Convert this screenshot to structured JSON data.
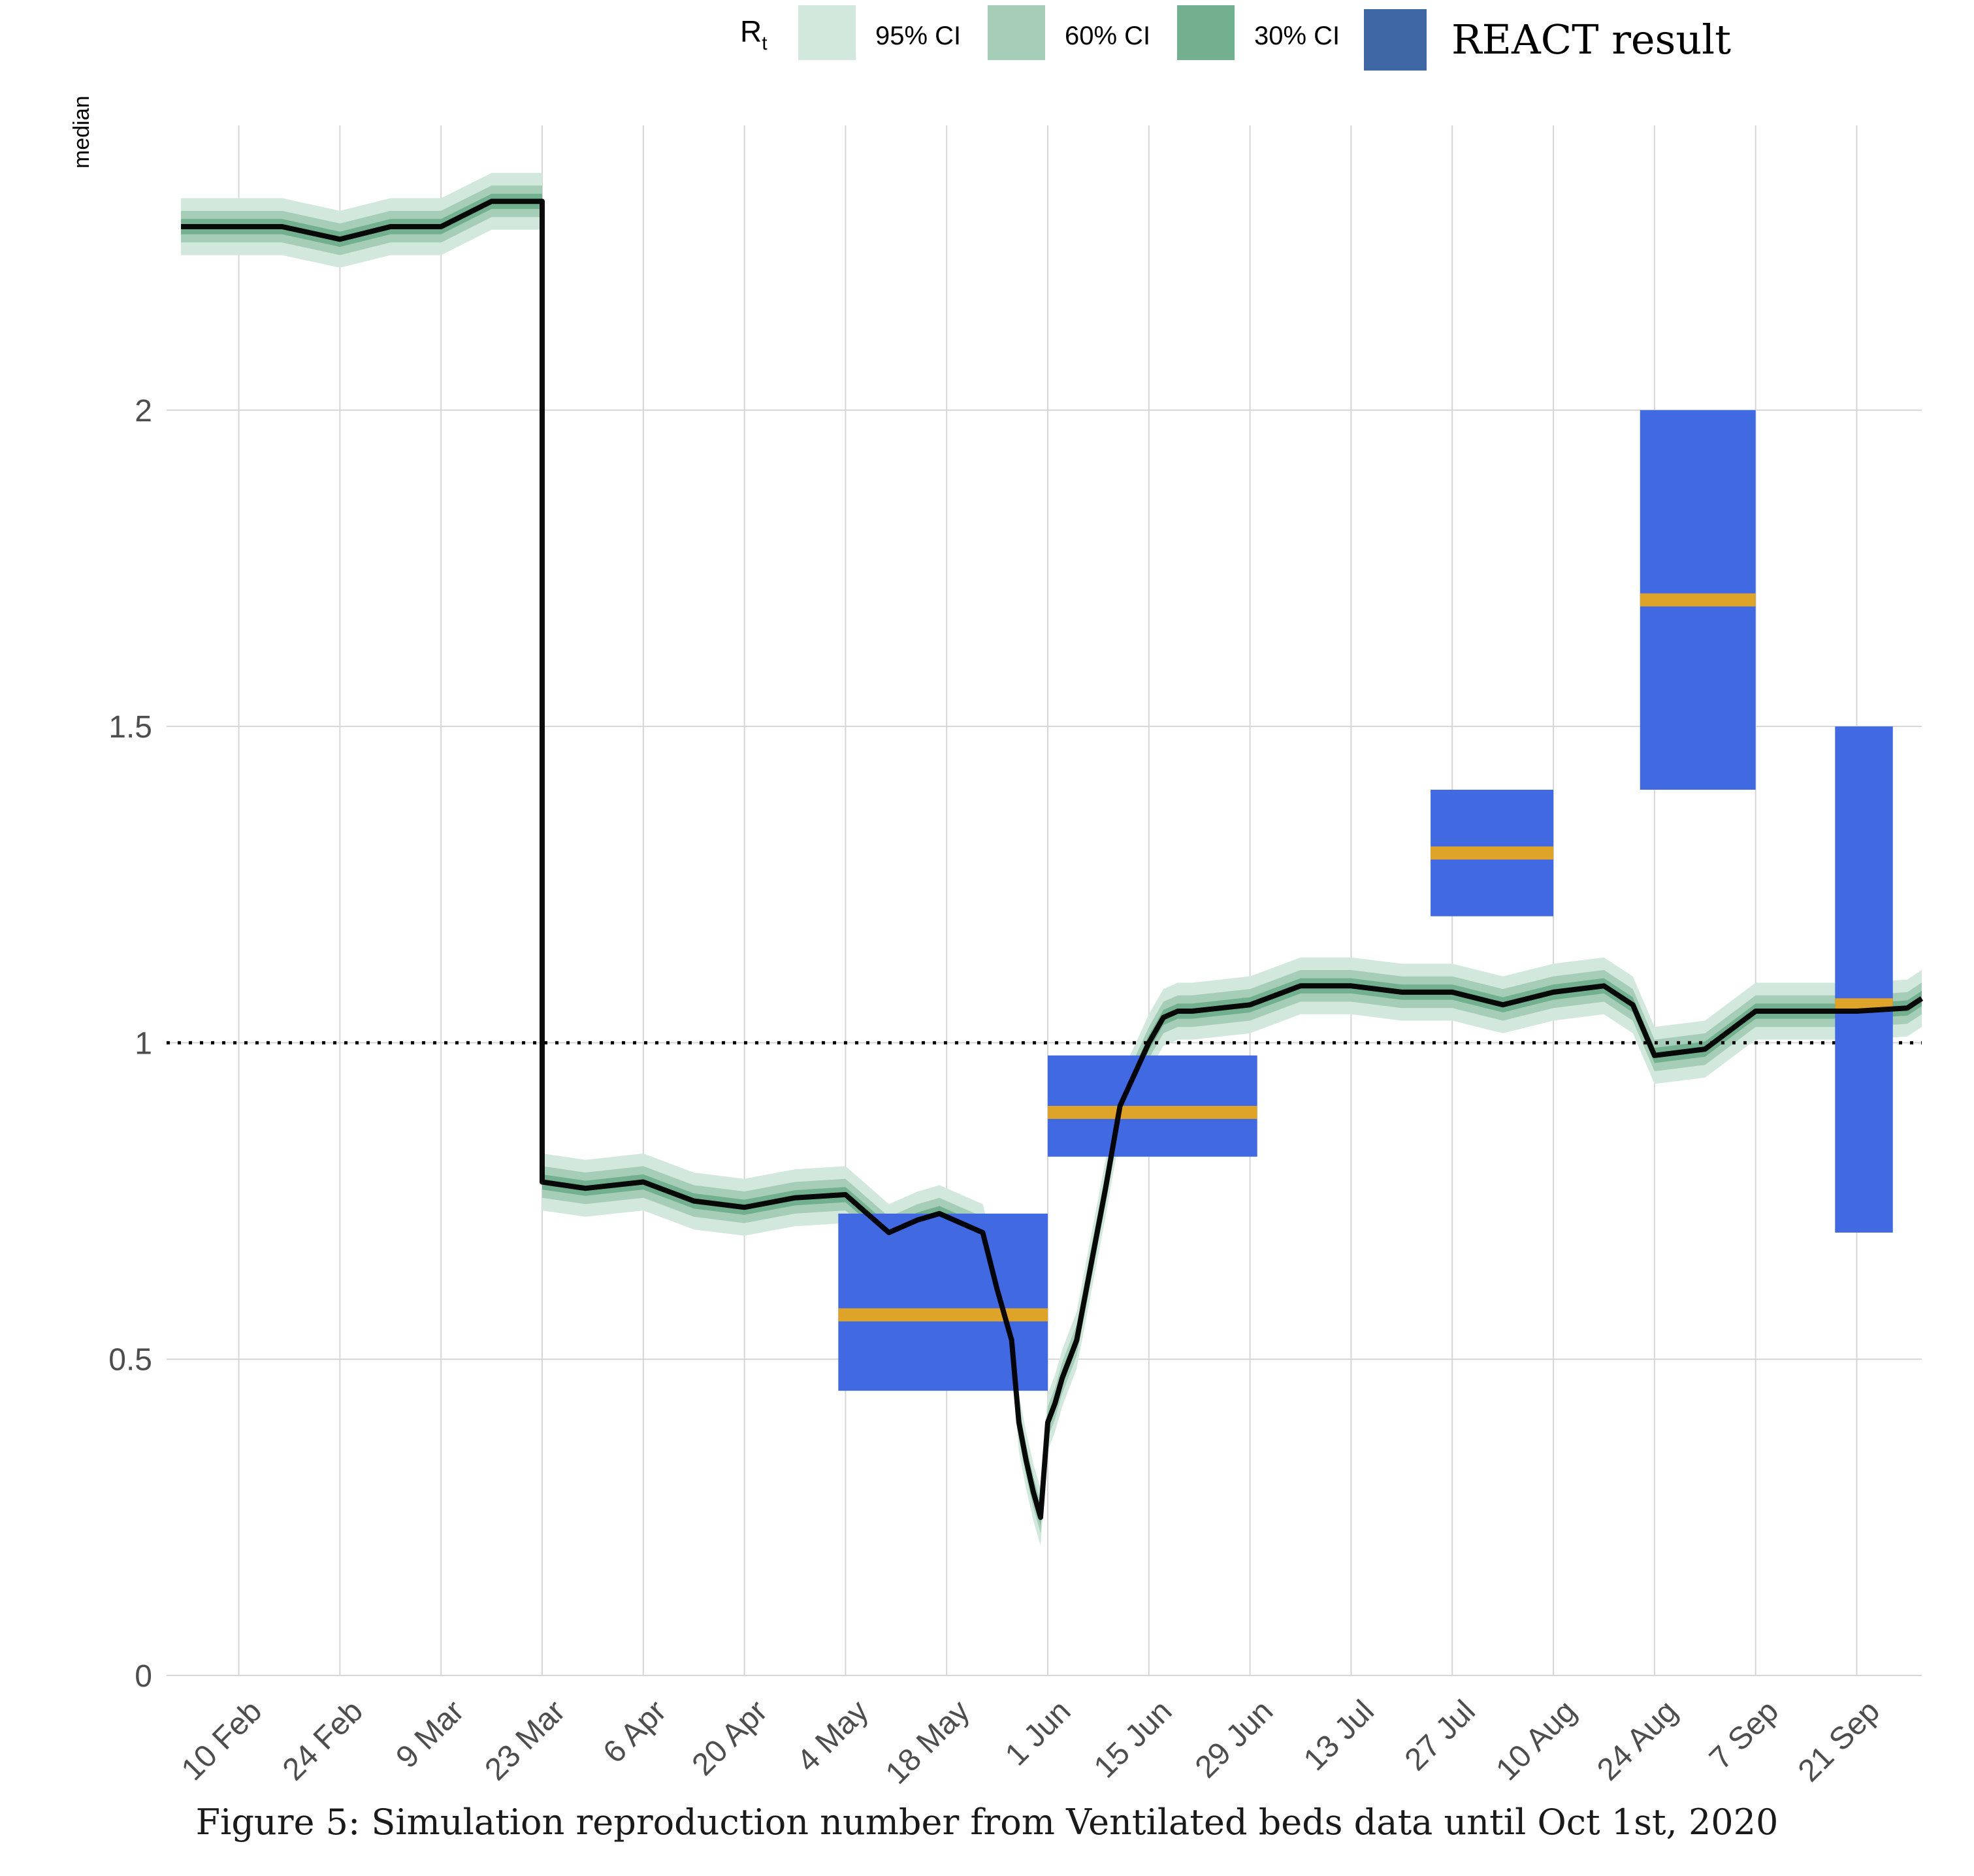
{
  "caption": "Figure 5: Simulation reproduction number from Ventilated beds data until Oct 1st, 2020",
  "legend": {
    "title_main": "R",
    "title_sub": "t",
    "items": [
      "95% CI",
      "60% CI",
      "30% CI",
      "REACT result"
    ]
  },
  "colors": {
    "ci95": "#d3e8dd",
    "ci60": "#a5cdb7",
    "ci30": "#72b08f",
    "median": "#000000",
    "react_box": "#4169e1",
    "react_legend": "#3f67a3",
    "react_center": "#dea42a",
    "grid": "#d6d6d6"
  },
  "chart_data": {
    "type": "line",
    "title": "",
    "xlabel": "",
    "ylabel": "median",
    "ylim": [
      0,
      2.45
    ],
    "yticks": [
      0,
      0.5,
      1,
      1.5,
      2
    ],
    "ytick_labels": [
      "0",
      "0.5",
      "1",
      "1.5",
      "2"
    ],
    "xlim": [
      "2020-01-31",
      "2020-09-30"
    ],
    "xtick_dates": [
      "2020-02-10",
      "2020-02-24",
      "2020-03-09",
      "2020-03-23",
      "2020-04-06",
      "2020-04-20",
      "2020-05-04",
      "2020-05-18",
      "2020-06-01",
      "2020-06-15",
      "2020-06-29",
      "2020-07-13",
      "2020-07-27",
      "2020-08-10",
      "2020-08-24",
      "2020-09-07",
      "2020-09-21"
    ],
    "xtick_labels": [
      "10 Feb",
      "24 Feb",
      "9 Mar",
      "23 Mar",
      "6 Apr",
      "20 Apr",
      "4 May",
      "18 May",
      "1 Jun",
      "15 Jun",
      "29 Jun",
      "13 Jul",
      "27 Jul",
      "10 Aug",
      "24 Aug",
      "7 Sep",
      "21 Sep"
    ],
    "reference_line": 1,
    "grid": true,
    "legend_position": "top",
    "median": {
      "x": [
        "2020-02-02",
        "2020-02-16",
        "2020-02-24",
        "2020-03-02",
        "2020-03-09",
        "2020-03-16",
        "2020-03-22",
        "2020-03-23",
        "2020-03-29",
        "2020-04-06",
        "2020-04-13",
        "2020-04-20",
        "2020-04-27",
        "2020-05-04",
        "2020-05-10",
        "2020-05-14",
        "2020-05-17",
        "2020-05-21",
        "2020-05-23",
        "2020-05-25",
        "2020-05-27",
        "2020-05-28",
        "2020-05-29",
        "2020-05-30",
        "2020-05-31",
        "2020-06-01",
        "2020-06-02",
        "2020-06-03",
        "2020-06-05",
        "2020-06-07",
        "2020-06-09",
        "2020-06-11",
        "2020-06-13",
        "2020-06-15",
        "2020-06-17",
        "2020-06-19",
        "2020-06-21",
        "2020-06-29",
        "2020-07-06",
        "2020-07-13",
        "2020-07-20",
        "2020-07-27",
        "2020-08-03",
        "2020-08-10",
        "2020-08-17",
        "2020-08-21",
        "2020-08-24",
        "2020-08-31",
        "2020-09-07",
        "2020-09-14",
        "2020-09-21",
        "2020-09-28",
        "2020-09-30"
      ],
      "y": [
        2.29,
        2.29,
        2.27,
        2.29,
        2.29,
        2.33,
        2.33,
        0.78,
        0.77,
        0.78,
        0.75,
        0.74,
        0.755,
        0.76,
        0.7,
        0.72,
        0.73,
        0.71,
        0.7,
        0.61,
        0.53,
        0.4,
        0.34,
        0.29,
        0.25,
        0.4,
        0.43,
        0.47,
        0.53,
        0.65,
        0.77,
        0.9,
        0.95,
        1.0,
        1.04,
        1.05,
        1.05,
        1.06,
        1.09,
        1.09,
        1.08,
        1.08,
        1.06,
        1.08,
        1.09,
        1.06,
        0.98,
        0.99,
        1.05,
        1.05,
        1.05,
        1.055,
        1.07
      ]
    },
    "ci95_halfwidth": 0.045,
    "ci60_halfwidth": 0.025,
    "ci30_halfwidth": 0.012,
    "react_results": [
      {
        "start": "2020-05-03",
        "end": "2020-06-01",
        "low": 0.45,
        "mid": 0.57,
        "high": 0.73
      },
      {
        "start": "2020-06-01",
        "end": "2020-06-30",
        "low": 0.82,
        "mid": 0.89,
        "high": 0.98
      },
      {
        "start": "2020-07-24",
        "end": "2020-08-10",
        "low": 1.2,
        "mid": 1.3,
        "high": 1.4
      },
      {
        "start": "2020-08-22",
        "end": "2020-09-07",
        "low": 1.4,
        "mid": 1.7,
        "high": 2.0
      },
      {
        "start": "2020-09-18",
        "end": "2020-09-26",
        "low": 0.7,
        "mid": 1.06,
        "high": 1.5
      }
    ]
  }
}
